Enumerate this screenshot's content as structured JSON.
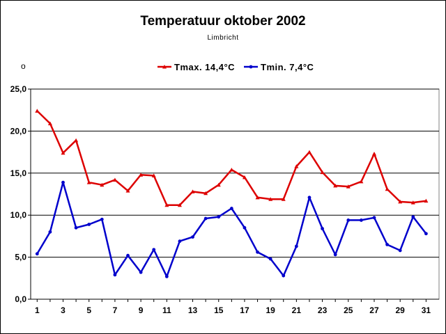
{
  "chart_data": {
    "type": "line",
    "title": "Temperatuur oktober 2002",
    "subtitle": "Limbricht",
    "ylabel": "o",
    "xlabel": "",
    "ylim": [
      0,
      25
    ],
    "yticks": [
      "0,0",
      "5,0",
      "10,0",
      "15,0",
      "20,0",
      "25,0"
    ],
    "ytick_values": [
      0,
      5,
      10,
      15,
      20,
      25
    ],
    "xticks": [
      "1",
      "3",
      "5",
      "7",
      "9",
      "11",
      "13",
      "15",
      "17",
      "19",
      "21",
      "23",
      "25",
      "27",
      "29",
      "31"
    ],
    "xtick_values": [
      1,
      3,
      5,
      7,
      9,
      11,
      13,
      15,
      17,
      19,
      21,
      23,
      25,
      27,
      29,
      31
    ],
    "x": [
      1,
      2,
      3,
      4,
      5,
      6,
      7,
      8,
      9,
      10,
      11,
      12,
      13,
      14,
      15,
      16,
      17,
      18,
      19,
      20,
      21,
      22,
      23,
      24,
      25,
      26,
      27,
      28,
      29,
      30,
      31
    ],
    "grid": "horizontal",
    "legend_position": "top-center",
    "series": [
      {
        "name": "Tmax. 14,4°C",
        "color": "#dd0000",
        "marker": "triangle",
        "values": [
          22.4,
          20.9,
          17.4,
          18.9,
          13.9,
          13.6,
          14.2,
          12.9,
          14.8,
          14.7,
          11.2,
          11.2,
          12.8,
          12.6,
          13.6,
          15.4,
          14.5,
          12.1,
          11.9,
          11.9,
          15.8,
          17.5,
          15.1,
          13.5,
          13.4,
          14.0,
          17.3,
          13.1,
          11.6,
          11.5,
          11.7
        ]
      },
      {
        "name": "Tmin. 7,4°C",
        "color": "#0000cc",
        "marker": "circle",
        "values": [
          5.4,
          8.0,
          13.9,
          8.5,
          8.9,
          9.5,
          2.9,
          5.2,
          3.2,
          5.9,
          2.7,
          6.9,
          7.4,
          9.6,
          9.8,
          10.8,
          8.5,
          5.6,
          4.8,
          2.8,
          6.3,
          12.1,
          8.4,
          5.3,
          9.4,
          9.4,
          9.7,
          6.5,
          5.8,
          9.8,
          7.8
        ]
      }
    ]
  }
}
